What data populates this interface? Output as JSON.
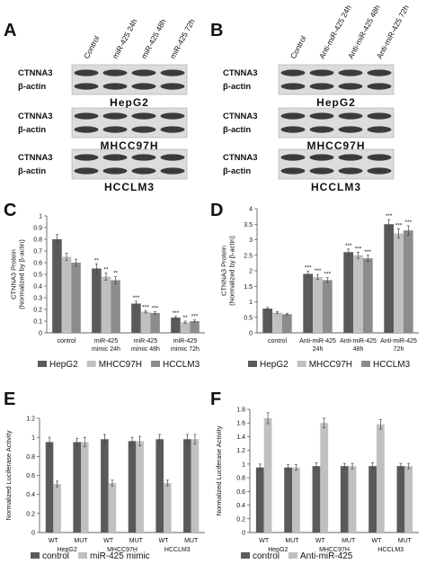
{
  "blots": [
    {
      "panel": "A",
      "lanes": [
        "Control",
        "miR-425 24h",
        "miR-425 48h",
        "miR-425 72h"
      ],
      "rows": [
        {
          "bands": [
            "CTNNA3",
            "β-actin"
          ],
          "cell": "HepG2"
        },
        {
          "bands": [
            "CTNNA3",
            "β-actin"
          ],
          "cell": "MHCC97H"
        },
        {
          "bands": [
            "CTNNA3",
            "β-actin"
          ],
          "cell": "HCCLM3"
        }
      ]
    },
    {
      "panel": "B",
      "lanes": [
        "Control",
        "Anti-miR-425 24h",
        "Anti-miR-425 48h",
        "Anti-miR-425 72h"
      ],
      "rows": [
        {
          "bands": [
            "CTNNA3",
            "β-actin"
          ],
          "cell": "HepG2"
        },
        {
          "bands": [
            "CTNNA3",
            "β-actin"
          ],
          "cell": "MHCC97H"
        },
        {
          "bands": [
            "CTNNA3",
            "β-actin"
          ],
          "cell": "HCCLM3"
        }
      ]
    }
  ],
  "chart_data": [
    {
      "type": "bar",
      "panel": "C",
      "ylabel": [
        "CTNNA3 Protein",
        "(Normalized by β-actin)"
      ],
      "categories": [
        [
          "control"
        ],
        [
          "miR-425",
          "mimic 24h"
        ],
        [
          "miR-425",
          "mimic 48h"
        ],
        [
          "miR-425",
          "mimic 72h"
        ]
      ],
      "ylim": [
        0,
        1
      ],
      "yticks": [
        0,
        0.1,
        0.2,
        0.3,
        0.4,
        0.5,
        0.6,
        0.7,
        0.8,
        0.9,
        1
      ],
      "series": [
        {
          "name": "HepG2",
          "color": "#5a5a5a",
          "values": [
            0.8,
            0.55,
            0.25,
            0.13
          ],
          "errors": [
            0.04,
            0.04,
            0.02,
            0.01
          ],
          "annotations": [
            null,
            "**",
            "***",
            "***"
          ]
        },
        {
          "name": "MHCC97H",
          "color": "#c0c0c0",
          "values": [
            0.65,
            0.48,
            0.18,
            0.09
          ],
          "errors": [
            0.03,
            0.03,
            0.01,
            0.01
          ],
          "annotations": [
            null,
            "**",
            "***",
            "**"
          ]
        },
        {
          "name": "HCCLM3",
          "color": "#8c8c8c",
          "values": [
            0.6,
            0.45,
            0.17,
            0.1
          ],
          "errors": [
            0.03,
            0.03,
            0.01,
            0.01
          ],
          "annotations": [
            null,
            "**",
            "***",
            "***"
          ]
        }
      ]
    },
    {
      "type": "bar",
      "panel": "D",
      "ylabel": [
        "CTNNA3 Protein",
        "(Normalized by β-actin)"
      ],
      "categories": [
        [
          "control"
        ],
        [
          "Anti-miR-425",
          "24h"
        ],
        [
          "Anti-miR-425",
          "48h"
        ],
        [
          "Anti-miR-425",
          "72h"
        ]
      ],
      "ylim": [
        0,
        4
      ],
      "yticks": [
        0,
        0.5,
        1,
        1.5,
        2,
        2.5,
        3,
        3.5,
        4
      ],
      "series": [
        {
          "name": "HepG2",
          "color": "#5a5a5a",
          "values": [
            0.78,
            1.9,
            2.6,
            3.5
          ],
          "errors": [
            0.04,
            0.08,
            0.1,
            0.15
          ],
          "annotations": [
            null,
            "***",
            "***",
            "***"
          ]
        },
        {
          "name": "MHCC97H",
          "color": "#c0c0c0",
          "values": [
            0.65,
            1.8,
            2.5,
            3.2
          ],
          "errors": [
            0.03,
            0.08,
            0.1,
            0.15
          ],
          "annotations": [
            null,
            "***",
            "***",
            "***"
          ]
        },
        {
          "name": "HCCLM3",
          "color": "#8c8c8c",
          "values": [
            0.6,
            1.7,
            2.4,
            3.3
          ],
          "errors": [
            0.03,
            0.08,
            0.1,
            0.15
          ],
          "annotations": [
            null,
            "***",
            "***",
            "***"
          ]
        }
      ]
    },
    {
      "type": "bar",
      "panel": "E",
      "ylabel": [
        "Normalized Luciferase Activity"
      ],
      "categories": [
        [
          "WT"
        ],
        [
          "MUT"
        ],
        [
          "WT"
        ],
        [
          "MUT"
        ],
        [
          "WT"
        ],
        [
          "MUT"
        ]
      ],
      "groups": [
        "HepG2",
        "MHCC97H",
        "HCCLM3"
      ],
      "ylim": [
        0,
        1.2
      ],
      "yticks": [
        0,
        0.2,
        0.4,
        0.6,
        0.8,
        1,
        1.2
      ],
      "series": [
        {
          "name": "control",
          "color": "#5a5a5a",
          "values": [
            0.95,
            0.95,
            0.98,
            0.96,
            0.98,
            0.98
          ],
          "errors": [
            0.05,
            0.04,
            0.05,
            0.04,
            0.05,
            0.05
          ]
        },
        {
          "name": "miR-425 mimic",
          "color": "#c0c0c0",
          "values": [
            0.51,
            0.95,
            0.52,
            0.96,
            0.52,
            0.98
          ],
          "errors": [
            0.03,
            0.05,
            0.03,
            0.05,
            0.03,
            0.05
          ]
        }
      ]
    },
    {
      "type": "bar",
      "panel": "F",
      "ylabel": [
        "Normalized Luciferase Activity"
      ],
      "categories": [
        [
          "WT"
        ],
        [
          "MUT"
        ],
        [
          "WT"
        ],
        [
          "MUT"
        ],
        [
          "WT"
        ],
        [
          "MUT"
        ]
      ],
      "groups": [
        "HepG2",
        "MHCC97H",
        "HCCLM3"
      ],
      "ylim": [
        0,
        1.8
      ],
      "yticks": [
        0,
        0.2,
        0.4,
        0.6,
        0.8,
        1,
        1.2,
        1.4,
        1.6,
        1.8
      ],
      "series": [
        {
          "name": "control",
          "color": "#5a5a5a",
          "values": [
            0.95,
            0.95,
            0.97,
            0.97,
            0.97,
            0.97
          ],
          "errors": [
            0.05,
            0.04,
            0.05,
            0.04,
            0.05,
            0.04
          ]
        },
        {
          "name": "Anti-miR-425",
          "color": "#c0c0c0",
          "values": [
            1.67,
            0.95,
            1.6,
            0.97,
            1.58,
            0.97
          ],
          "errors": [
            0.08,
            0.04,
            0.07,
            0.04,
            0.07,
            0.04
          ]
        }
      ]
    }
  ]
}
